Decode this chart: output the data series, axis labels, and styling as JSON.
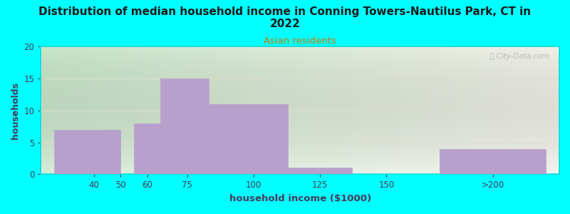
{
  "title": "Distribution of median household income in Conning Towers-Nautilus Park, CT in\n2022",
  "subtitle": "Asian residents",
  "xlabel": "household income ($1000)",
  "ylabel": "households",
  "background_color": "#00FFFF",
  "plot_bg_gradient_left": "#c8e6c8",
  "plot_bg_gradient_right": "#f0f0e8",
  "bar_color": "#b8a0cc",
  "bar_edge_color": "#b8a0cc",
  "watermark": "ⓘ City-Data.com",
  "bars": [
    {
      "x_left": 25,
      "x_right": 50,
      "height": 7
    },
    {
      "x_left": 55,
      "x_right": 65,
      "height": 8
    },
    {
      "x_left": 65,
      "x_right": 83,
      "height": 15
    },
    {
      "x_left": 83,
      "x_right": 113,
      "height": 11
    },
    {
      "x_left": 113,
      "x_right": 137,
      "height": 1
    },
    {
      "x_left": 170,
      "x_right": 210,
      "height": 4
    }
  ],
  "xticks_labels": [
    "40",
    "50",
    "60",
    "75",
    "100",
    "125",
    "150",
    ">200"
  ],
  "xtick_positions": [
    40,
    50,
    60,
    75,
    100,
    125,
    150,
    190
  ],
  "yticks": [
    0,
    5,
    10,
    15,
    20
  ],
  "ylim": [
    0,
    20
  ],
  "xlim": [
    20,
    215
  ]
}
